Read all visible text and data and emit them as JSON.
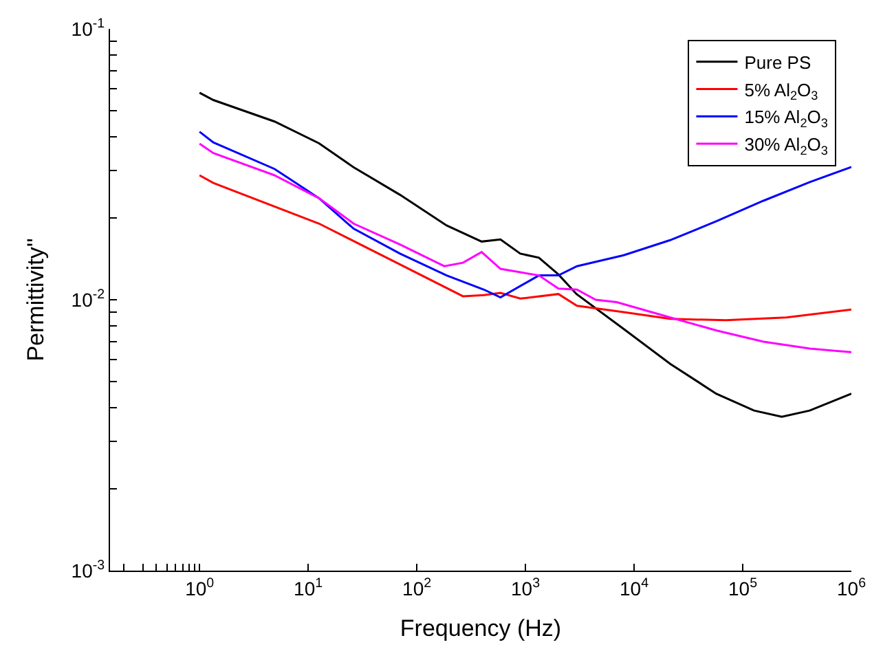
{
  "chart_data": {
    "type": "line",
    "xlabel": "Frequency (Hz)",
    "ylabel": "Permittivity''",
    "log": "xy",
    "legend": "top right",
    "marker": "none",
    "line_style": "solid",
    "xlim": [
      0.15,
      1000000
    ],
    "ylim": [
      0.001,
      0.1
    ],
    "xticks": [
      {
        "value": 0.2,
        "label": null
      },
      {
        "value": 0.3,
        "label": null
      },
      {
        "value": 0.4,
        "label": null
      },
      {
        "value": 0.5,
        "label": null
      },
      {
        "value": 0.6,
        "label": null
      },
      {
        "value": 0.7,
        "label": null
      },
      {
        "value": 0.8,
        "label": null
      },
      {
        "value": 0.9,
        "label": null
      },
      {
        "value": 1,
        "label": "10$^{0}$"
      },
      {
        "value": 10,
        "label": "10$^{1}$"
      },
      {
        "value": 100,
        "label": "10$^{2}$"
      },
      {
        "value": 1000,
        "label": "10$^{3}$"
      },
      {
        "value": 10000,
        "label": "10$^{4}$"
      },
      {
        "value": 100000,
        "label": "10$^{5}$"
      },
      {
        "value": 1000000,
        "label": "10$^{6}$"
      }
    ],
    "yticks": [
      {
        "value": 0.001,
        "label": "10$^{-3}$"
      },
      {
        "value": 0.002,
        "label": null
      },
      {
        "value": 0.003,
        "label": null
      },
      {
        "value": 0.004,
        "label": null
      },
      {
        "value": 0.005,
        "label": null
      },
      {
        "value": 0.006,
        "label": null
      },
      {
        "value": 0.007,
        "label": null
      },
      {
        "value": 0.008,
        "label": null
      },
      {
        "value": 0.009,
        "label": null
      },
      {
        "value": 0.01,
        "label": "10$^{-2}$"
      },
      {
        "value": 0.02,
        "label": null
      },
      {
        "value": 0.03,
        "label": null
      },
      {
        "value": 0.04,
        "label": null
      },
      {
        "value": 0.05,
        "label": null
      },
      {
        "value": 0.06,
        "label": null
      },
      {
        "value": 0.07,
        "label": null
      },
      {
        "value": 0.08,
        "label": null
      },
      {
        "value": 0.09,
        "label": null
      },
      {
        "value": 0.1,
        "label": "10$^{-1}$"
      }
    ],
    "series": [
      {
        "name": "Pure PS",
        "color": "#000000",
        "x": [
          1,
          1.34,
          4.9,
          12.6,
          26,
          70,
          188,
          395,
          589,
          896,
          1330,
          2010,
          2950,
          8020,
          21500,
          57000,
          127000,
          229000,
          414000,
          1000000
        ],
        "values": [
          0.0581,
          0.0546,
          0.0455,
          0.0378,
          0.0309,
          0.0244,
          0.0188,
          0.0164,
          0.0167,
          0.0148,
          0.0143,
          0.0124,
          0.0105,
          0.0078,
          0.0058,
          0.0045,
          0.0039,
          0.0037,
          0.0039,
          0.0045
        ]
      },
      {
        "name": "5% Al$_{2}$O$_{3}$",
        "color": "#ff0000",
        "x": [
          1,
          1.34,
          12.6,
          70,
          266,
          415,
          589,
          896,
          2010,
          2980,
          8020,
          21500,
          70100,
          252000,
          1000000
        ],
        "values": [
          0.0288,
          0.027,
          0.0191,
          0.0135,
          0.0103,
          0.0104,
          0.0106,
          0.0101,
          0.0105,
          0.0095,
          0.009,
          0.0085,
          0.0084,
          0.0086,
          0.0092
        ]
      },
      {
        "name": "15% Al$_{2}$O$_{3}$",
        "color": "#0000ff",
        "x": [
          1,
          1.34,
          4.9,
          12.6,
          26.2,
          70,
          188,
          415,
          589,
          1330,
          2010,
          2980,
          8020,
          21500,
          57500,
          155000,
          414000,
          1000000
        ],
        "values": [
          0.0417,
          0.0381,
          0.0304,
          0.0237,
          0.0183,
          0.0148,
          0.0123,
          0.0109,
          0.0102,
          0.0123,
          0.0123,
          0.0133,
          0.0146,
          0.0166,
          0.0195,
          0.0232,
          0.0272,
          0.0309
        ]
      },
      {
        "name": "30% Al$_{2}$O$_{3}$",
        "color": "#ff00ff",
        "x": [
          1,
          1.34,
          4.9,
          12.6,
          26.2,
          70,
          179,
          266,
          395,
          589,
          1330,
          2010,
          2980,
          4430,
          6920,
          21500,
          57500,
          155000,
          414000,
          1000000
        ],
        "values": [
          0.0377,
          0.0348,
          0.0288,
          0.0237,
          0.0191,
          0.016,
          0.0133,
          0.0137,
          0.015,
          0.013,
          0.0123,
          0.011,
          0.0109,
          0.01,
          0.0098,
          0.0086,
          0.0077,
          0.007,
          0.0066,
          0.0064
        ]
      }
    ]
  }
}
